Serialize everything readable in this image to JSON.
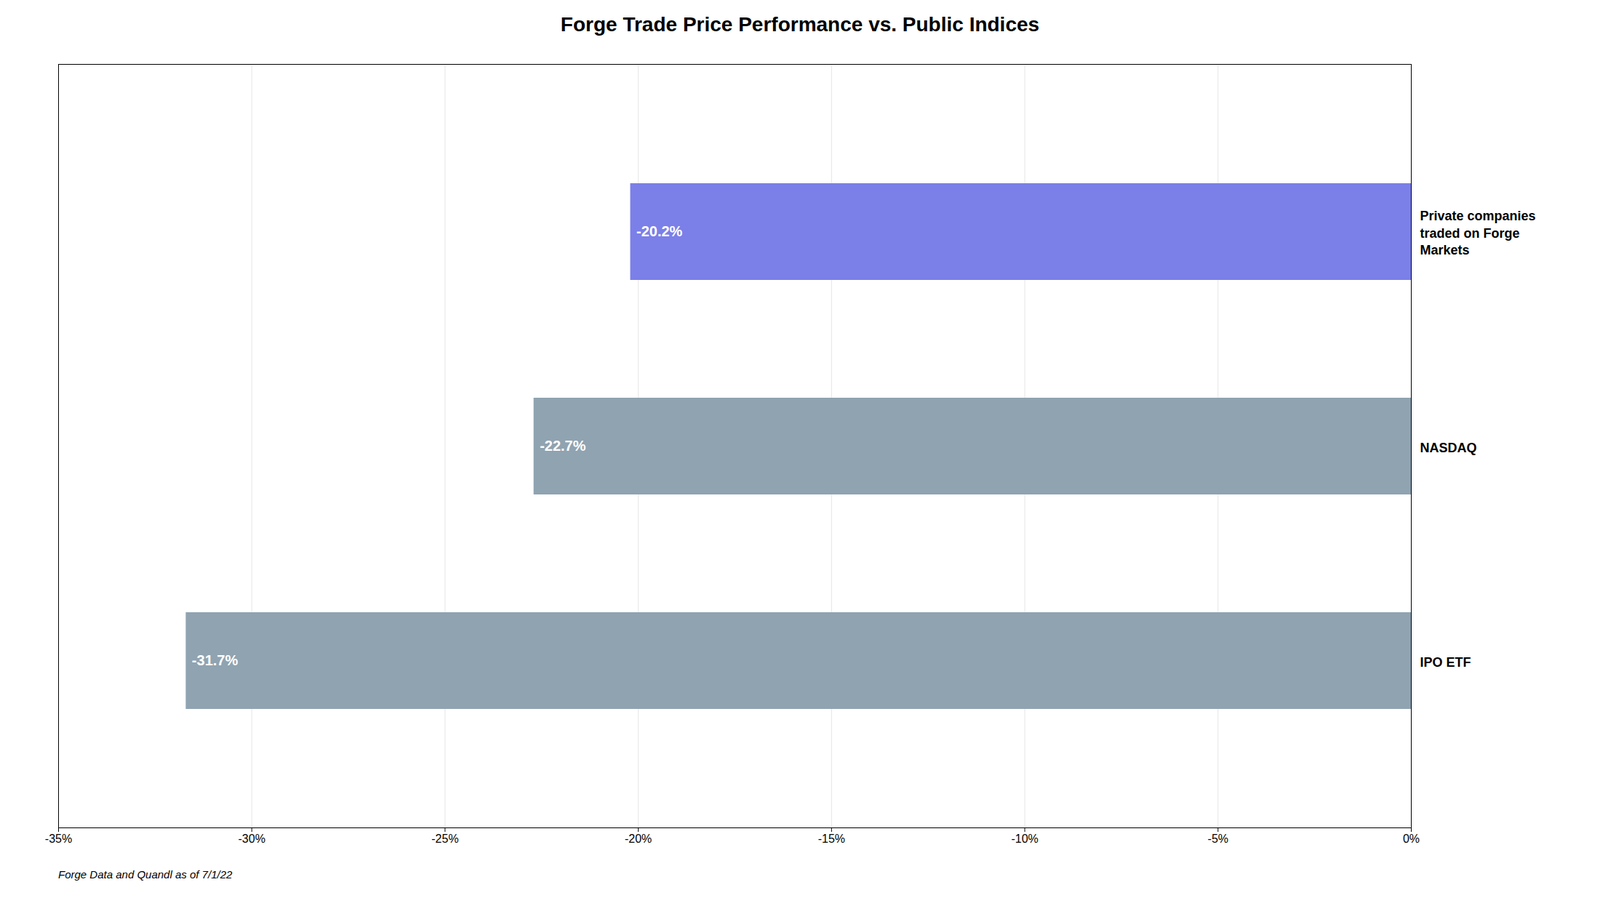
{
  "chart_data": {
    "type": "bar",
    "orientation": "horizontal",
    "title": "Forge Trade Price Performance vs. Public Indices",
    "caption": "Forge Data and Quandl as of 7/1/22",
    "categories": [
      "IPO ETF",
      "NASDAQ",
      "Private companies\ntraded on Forge\nMarkets"
    ],
    "values": [
      -31.7,
      -22.7,
      -20.2
    ],
    "value_labels": [
      "-31.7%",
      "-22.7%",
      "-20.2%"
    ],
    "data_labels": true,
    "colors": [
      "#8fa3b1",
      "#8fa3b1",
      "#7b7fe8"
    ],
    "xlim": [
      -35,
      0
    ],
    "xticks": [
      {
        "value": -35,
        "label": "-35%"
      },
      {
        "value": -30,
        "label": "-30%"
      },
      {
        "value": -25,
        "label": "-25%"
      },
      {
        "value": -20,
        "label": "-20%"
      },
      {
        "value": -15,
        "label": "-15%"
      },
      {
        "value": -10,
        "label": "-10%"
      },
      {
        "value": -5,
        "label": "-5%"
      },
      {
        "value": 0,
        "label": "0%"
      }
    ],
    "grid": true
  }
}
